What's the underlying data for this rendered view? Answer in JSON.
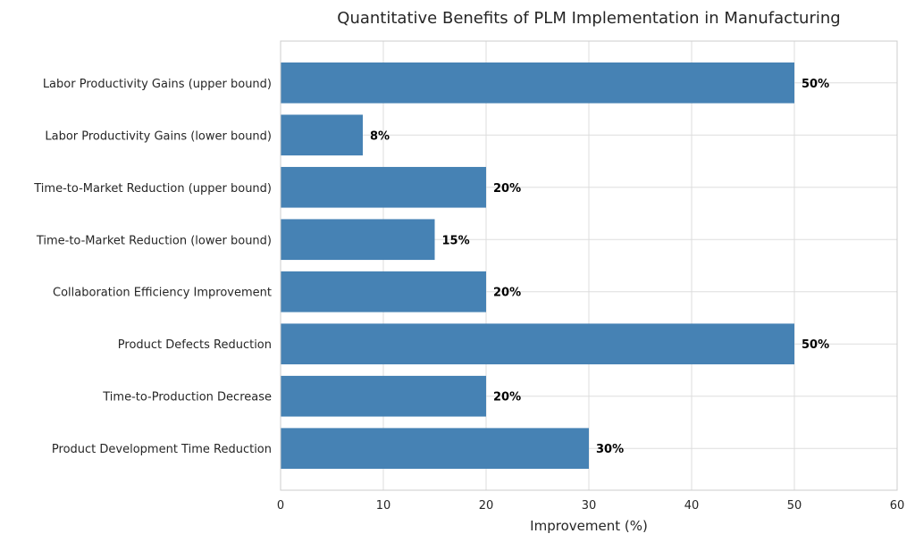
{
  "chart_data": {
    "type": "bar",
    "orientation": "horizontal",
    "title": "Quantitative Benefits of PLM Implementation in Manufacturing",
    "xlabel": "Improvement (%)",
    "ylabel": "",
    "xlim": [
      0,
      60
    ],
    "xticks": [
      "0",
      "10",
      "20",
      "30",
      "40",
      "50",
      "60"
    ],
    "xtick_values": [
      0,
      10,
      20,
      30,
      40,
      50,
      60
    ],
    "grid": true,
    "bar_color": "#4682b4",
    "categories": [
      "Labor Productivity Gains (upper bound)",
      "Labor Productivity Gains (lower bound)",
      "Time-to-Market Reduction (upper bound)",
      "Time-to-Market Reduction (lower bound)",
      "Collaboration Efficiency Improvement",
      "Product Defects Reduction",
      "Time-to-Production Decrease",
      "Product Development Time Reduction"
    ],
    "values": [
      50,
      8,
      20,
      15,
      20,
      50,
      20,
      30
    ],
    "data_labels": [
      "50%",
      "8%",
      "20%",
      "15%",
      "20%",
      "50%",
      "20%",
      "30%"
    ]
  }
}
